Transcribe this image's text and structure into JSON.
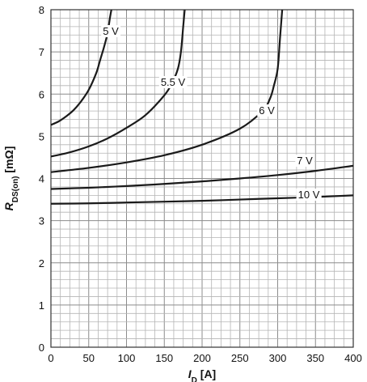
{
  "chart_data": {
    "type": "line",
    "title": "",
    "xlabel": {
      "main": "I",
      "sub": "D",
      "unit": " [A]"
    },
    "ylabel": {
      "main": "R",
      "sub": "DS(on)",
      "unit": "  [mΩ]"
    },
    "xlim": [
      0,
      400
    ],
    "ylim": [
      0,
      8
    ],
    "x_ticks": [
      "0",
      "50",
      "100",
      "150",
      "200",
      "250",
      "300",
      "350",
      "400"
    ],
    "y_ticks": [
      "0",
      "1",
      "2",
      "3",
      "4",
      "5",
      "6",
      "7",
      "8"
    ],
    "grid": true,
    "series": [
      {
        "name": "5 V",
        "x": [
          0,
          10,
          20,
          30,
          40,
          50,
          60,
          65,
          70,
          75,
          78,
          80
        ],
        "y": [
          5.27,
          5.35,
          5.47,
          5.62,
          5.83,
          6.1,
          6.5,
          6.8,
          7.1,
          7.45,
          7.8,
          8.0
        ]
      },
      {
        "name": "5.5 V",
        "x": [
          0,
          25,
          50,
          75,
          100,
          125,
          150,
          160,
          168,
          172,
          175,
          177
        ],
        "y": [
          4.52,
          4.62,
          4.76,
          4.95,
          5.2,
          5.5,
          5.97,
          6.25,
          6.6,
          7.0,
          7.6,
          8.0
        ]
      },
      {
        "name": "6 V",
        "x": [
          0,
          50,
          100,
          150,
          200,
          250,
          280,
          290,
          295,
          300,
          303,
          306
        ],
        "y": [
          4.15,
          4.25,
          4.38,
          4.55,
          4.8,
          5.18,
          5.6,
          5.9,
          6.2,
          6.6,
          7.3,
          8.0
        ]
      },
      {
        "name": "7 V",
        "x": [
          0,
          50,
          100,
          150,
          200,
          250,
          300,
          350,
          400
        ],
        "y": [
          3.75,
          3.78,
          3.82,
          3.87,
          3.93,
          4.0,
          4.08,
          4.18,
          4.3
        ]
      },
      {
        "name": "10 V",
        "x": [
          0,
          50,
          100,
          150,
          200,
          250,
          300,
          350,
          400
        ],
        "y": [
          3.4,
          3.41,
          3.43,
          3.45,
          3.47,
          3.5,
          3.53,
          3.56,
          3.6
        ]
      }
    ]
  }
}
